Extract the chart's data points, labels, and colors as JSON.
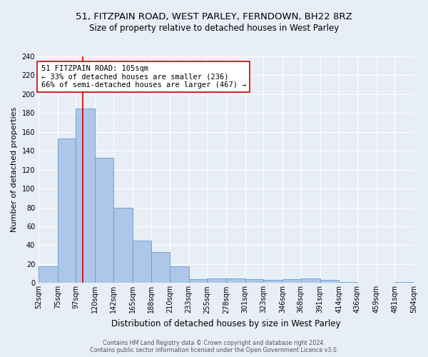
{
  "title": "51, FITZPAIN ROAD, WEST PARLEY, FERNDOWN, BH22 8RZ",
  "subtitle": "Size of property relative to detached houses in West Parley",
  "xlabel": "Distribution of detached houses by size in West Parley",
  "ylabel": "Number of detached properties",
  "footer_line1": "Contains HM Land Registry data © Crown copyright and database right 2024.",
  "footer_line2": "Contains public sector information licensed under the Open Government Licence v3.0.",
  "bins": [
    52,
    75,
    97,
    120,
    142,
    165,
    188,
    210,
    233,
    255,
    278,
    301,
    323,
    346,
    368,
    391,
    414,
    436,
    459,
    481,
    504
  ],
  "bar_heights": [
    18,
    153,
    185,
    133,
    80,
    45,
    33,
    18,
    4,
    5,
    5,
    4,
    3,
    4,
    5,
    3,
    1,
    0,
    0,
    1
  ],
  "bar_color": "#aec6e8",
  "bar_edge_color": "#5a9fd4",
  "property_size": 105,
  "vline_color": "#cc0000",
  "annotation_text": "51 FITZPAIN ROAD: 105sqm\n← 33% of detached houses are smaller (236)\n66% of semi-detached houses are larger (467) →",
  "annotation_box_color": "#ffffff",
  "annotation_box_edge": "#cc0000",
  "ylim": [
    0,
    240
  ],
  "yticks": [
    0,
    20,
    40,
    60,
    80,
    100,
    120,
    140,
    160,
    180,
    200,
    220,
    240
  ],
  "background_color": "#e8eef6",
  "plot_bg_color": "#e8eef6",
  "grid_color": "#ffffff",
  "title_fontsize": 9.5,
  "subtitle_fontsize": 8.5,
  "xlabel_fontsize": 8.5,
  "ylabel_fontsize": 8,
  "tick_fontsize": 7,
  "annotation_fontsize": 7.5,
  "footer_fontsize": 5.8
}
